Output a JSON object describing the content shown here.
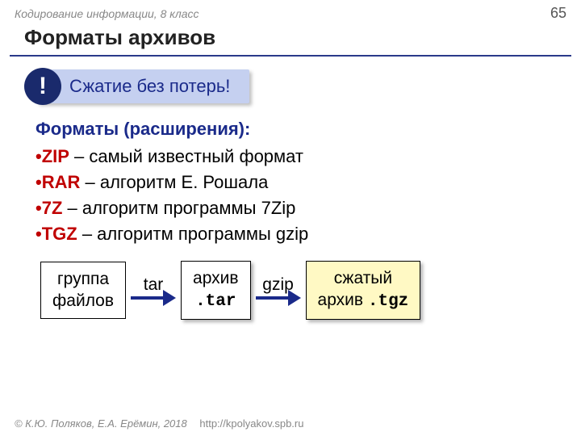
{
  "header": {
    "topic": "Кодирование информации, 8 класс",
    "page": "65"
  },
  "title": "Форматы архивов",
  "callout": {
    "mark": "!",
    "text": "Сжатие без потерь!"
  },
  "subhead": "Форматы (расширения):",
  "formats": [
    {
      "code": "ZIP",
      "desc": " – самый известный формат"
    },
    {
      "code": "RAR",
      "desc": " – алгоритм Е. Рошала"
    },
    {
      "code": "7Z",
      "desc": " – алгоритм программы 7Zip"
    },
    {
      "code": "TGZ",
      "desc": " – алгоритм программы gzip"
    }
  ],
  "diagram": {
    "box1_l1": "группа",
    "box1_l2": "файлов",
    "arr1": "tar",
    "box2_l1": "архив",
    "box2_ext": ".tar",
    "arr2": "gzip",
    "box3_l1": "сжатый",
    "box3_l2": "архив ",
    "box3_ext": ".tgz"
  },
  "footer": {
    "credit": "© К.Ю. Поляков, Е.А. Ерёмин, 2018",
    "url": "http://kpolyakov.spb.ru"
  },
  "colors": {
    "accent": "#1a2a8a",
    "red": "#c00000",
    "callout_bg": "#c5d0f0",
    "yellow": "#fff9c4",
    "grey": "#888888"
  }
}
